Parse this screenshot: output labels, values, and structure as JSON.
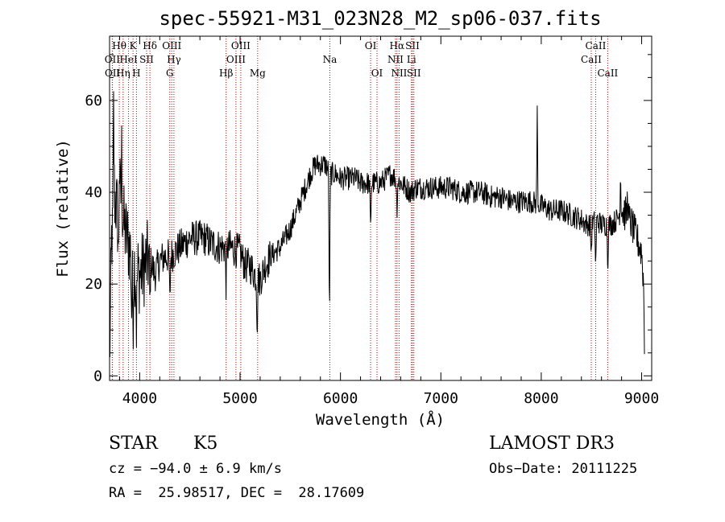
{
  "colors": {
    "axis": "#000000",
    "spectrum": "#000000",
    "lines": "#cc0000",
    "background": "#ffffff"
  },
  "chart_data": {
    "type": "line",
    "title": "spec-55921-M31_023N28_M2_sp06-037.fits",
    "xlabel": "Wavelength (Å)",
    "ylabel": "Flux (relative)",
    "xlim": [
      3700,
      9100
    ],
    "ylim": [
      -1,
      74
    ],
    "x_ticks": [
      4000,
      5000,
      6000,
      7000,
      8000,
      9000
    ],
    "y_ticks": [
      0,
      20,
      40,
      60
    ],
    "grid": false,
    "spectrum_knots": [
      [
        3700,
        2
      ],
      [
        3720,
        30
      ],
      [
        3740,
        40
      ],
      [
        3760,
        38
      ],
      [
        3780,
        35
      ],
      [
        3800,
        40
      ],
      [
        3850,
        32
      ],
      [
        3900,
        28
      ],
      [
        3950,
        24
      ],
      [
        4000,
        22
      ],
      [
        4050,
        24
      ],
      [
        4100,
        26
      ],
      [
        4150,
        22
      ],
      [
        4200,
        25
      ],
      [
        4250,
        26
      ],
      [
        4300,
        26
      ],
      [
        4350,
        27
      ],
      [
        4400,
        28
      ],
      [
        4450,
        29
      ],
      [
        4500,
        30
      ],
      [
        4550,
        30
      ],
      [
        4600,
        30
      ],
      [
        4650,
        30
      ],
      [
        4700,
        29
      ],
      [
        4800,
        28
      ],
      [
        4900,
        28
      ],
      [
        5000,
        27
      ],
      [
        5050,
        24
      ],
      [
        5100,
        24
      ],
      [
        5150,
        22
      ],
      [
        5200,
        21
      ],
      [
        5250,
        24
      ],
      [
        5300,
        26
      ],
      [
        5350,
        27
      ],
      [
        5400,
        28
      ],
      [
        5450,
        30
      ],
      [
        5500,
        32
      ],
      [
        5550,
        35
      ],
      [
        5600,
        38
      ],
      [
        5650,
        41
      ],
      [
        5700,
        44
      ],
      [
        5750,
        46
      ],
      [
        5800,
        46
      ],
      [
        5850,
        46
      ],
      [
        5900,
        44
      ],
      [
        5950,
        44
      ],
      [
        6000,
        43
      ],
      [
        6050,
        43
      ],
      [
        6100,
        43
      ],
      [
        6150,
        43
      ],
      [
        6200,
        42
      ],
      [
        6250,
        42
      ],
      [
        6300,
        42
      ],
      [
        6350,
        42
      ],
      [
        6400,
        42
      ],
      [
        6450,
        43
      ],
      [
        6500,
        44
      ],
      [
        6550,
        43
      ],
      [
        6600,
        42
      ],
      [
        6650,
        41
      ],
      [
        6700,
        40
      ],
      [
        6750,
        41
      ],
      [
        6800,
        41
      ],
      [
        6900,
        41
      ],
      [
        7000,
        41
      ],
      [
        7100,
        41
      ],
      [
        7200,
        40
      ],
      [
        7300,
        40
      ],
      [
        7400,
        40
      ],
      [
        7500,
        39
      ],
      [
        7600,
        39
      ],
      [
        7700,
        38
      ],
      [
        7800,
        38
      ],
      [
        7900,
        38
      ],
      [
        8000,
        37
      ],
      [
        8100,
        36
      ],
      [
        8200,
        36
      ],
      [
        8300,
        35
      ],
      [
        8400,
        34
      ],
      [
        8450,
        33
      ],
      [
        8500,
        33
      ],
      [
        8550,
        34
      ],
      [
        8600,
        33
      ],
      [
        8650,
        33
      ],
      [
        8700,
        33
      ],
      [
        8750,
        34
      ],
      [
        8800,
        36
      ],
      [
        8850,
        35
      ],
      [
        8900,
        33
      ],
      [
        8950,
        30
      ],
      [
        9000,
        27
      ],
      [
        9020,
        20
      ],
      [
        9030,
        2
      ]
    ],
    "spectrum_dips": [
      [
        3730,
        5
      ],
      [
        3790,
        16
      ],
      [
        3920,
        12
      ],
      [
        3934,
        12
      ],
      [
        3968,
        12
      ],
      [
        4102,
        10
      ],
      [
        4300,
        10
      ],
      [
        4861,
        8
      ],
      [
        5170,
        10
      ],
      [
        5890,
        30
      ],
      [
        6300,
        10
      ],
      [
        6563,
        6
      ],
      [
        8498,
        6
      ],
      [
        8542,
        10
      ],
      [
        8662,
        8
      ]
    ],
    "spectrum_spikes": [
      [
        3740,
        18
      ],
      [
        3795,
        14
      ],
      [
        3820,
        12
      ],
      [
        7960,
        20
      ],
      [
        8790,
        8
      ],
      [
        8860,
        6
      ]
    ],
    "line_markers": [
      {
        "name": "OII",
        "x": 3727,
        "row": 1
      },
      {
        "name": "OII",
        "x": 3729,
        "row": 2
      },
      {
        "name": "Hθ",
        "x": 3797,
        "row": 0
      },
      {
        "name": "Hη",
        "x": 3835,
        "row": 2
      },
      {
        "name": "HeI",
        "x": 3889,
        "row": 1
      },
      {
        "name": "K",
        "x": 3934,
        "row": 0
      },
      {
        "name": "H",
        "x": 3968,
        "row": 2
      },
      {
        "name": "SII",
        "x": 4069,
        "row": 1
      },
      {
        "name": "Hδ",
        "x": 4102,
        "row": 0
      },
      {
        "name": "G",
        "x": 4300,
        "row": 2
      },
      {
        "name": "OIII",
        "x": 4320,
        "row": 0
      },
      {
        "name": "Hγ",
        "x": 4341,
        "row": 1
      },
      {
        "name": "Hβ",
        "x": 4861,
        "row": 2
      },
      {
        "name": "OIII",
        "x": 4959,
        "row": 1
      },
      {
        "name": "OIII",
        "x": 5007,
        "row": 0
      },
      {
        "name": "Mg",
        "x": 5175,
        "row": 2
      },
      {
        "name": "Na",
        "x": 5894,
        "row": 1
      },
      {
        "name": "OI",
        "x": 6300,
        "row": 0
      },
      {
        "name": "OI",
        "x": 6364,
        "row": 2
      },
      {
        "name": "NII",
        "x": 6548,
        "row": 1
      },
      {
        "name": "Hα",
        "x": 6563,
        "row": 0
      },
      {
        "name": "NII",
        "x": 6584,
        "row": 2
      },
      {
        "name": "SII",
        "x": 6717,
        "row": 0
      },
      {
        "name": "Li",
        "x": 6707,
        "row": 1
      },
      {
        "name": "SII",
        "x": 6731,
        "row": 2
      },
      {
        "name": "CaII",
        "x": 8498,
        "row": 1
      },
      {
        "name": "CaII",
        "x": 8542,
        "row": 0
      },
      {
        "name": "CaII",
        "x": 8662,
        "row": 2
      }
    ]
  },
  "info": {
    "class": "STAR",
    "subclass": "K5",
    "survey": "LAMOST DR3",
    "redshift": "cz = −94.0 ± 6.9 km/s",
    "obs_date": "Obs−Date: 20111225",
    "coords": "RA =  25.98517, DEC =  28.17609"
  }
}
